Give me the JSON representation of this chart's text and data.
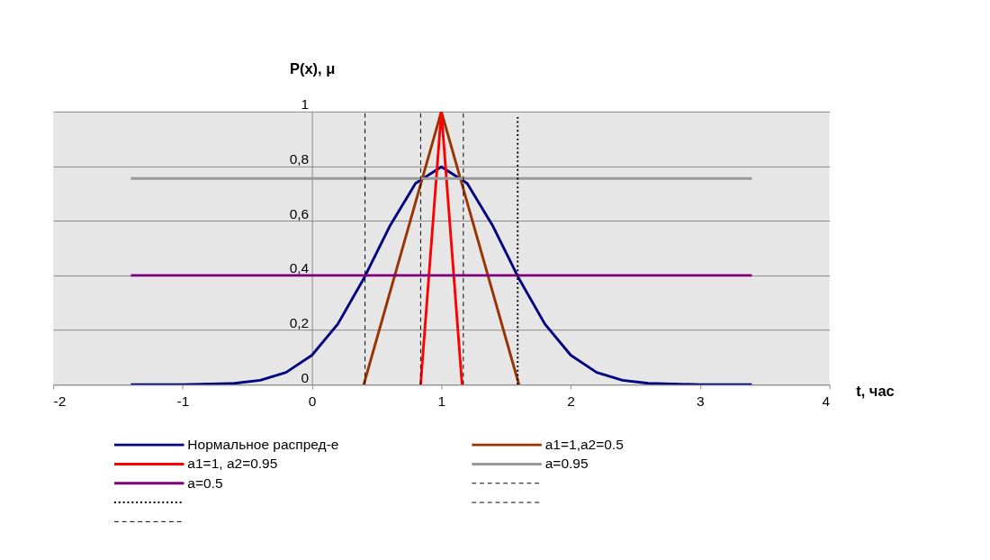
{
  "chart_data": {
    "type": "line",
    "xlabel": "t, час",
    "ylabel": "P(x), μ",
    "xlim": [
      -2,
      4
    ],
    "xticks": [
      -2,
      -1,
      0,
      1,
      2,
      3,
      4
    ],
    "ylim": [
      0,
      1
    ],
    "yticks": [
      0,
      {
        "value": 0.2,
        "label": "0,2"
      },
      {
        "value": 0.4,
        "label": "0,4"
      },
      {
        "value": 0.6,
        "label": "0,6"
      },
      {
        "value": 0.8,
        "label": "0,8"
      },
      1
    ],
    "grid": "y",
    "legend": "bottom",
    "line_style": "solid",
    "series": [
      {
        "name": "Нормальное распред-е",
        "color": "#000080",
        "x": [
          -1.4,
          -1.0,
          -0.6,
          -0.4,
          -0.2,
          0,
          0.2,
          0.4,
          0.6,
          0.8,
          1.0,
          1.2,
          1.4,
          1.6,
          1.8,
          2.0,
          2.2,
          2.4,
          2.6,
          3.0,
          3.4
        ],
        "values": [
          0,
          0,
          0.005,
          0.016,
          0.045,
          0.108,
          0.222,
          0.388,
          0.579,
          0.737,
          0.798,
          0.737,
          0.579,
          0.388,
          0.222,
          0.108,
          0.045,
          0.016,
          0.005,
          0,
          0
        ]
      },
      {
        "name": "a1=1,a2=0.5",
        "color": "#993300",
        "x": [
          0.4,
          1.0,
          1.6
        ],
        "values": [
          0,
          1,
          0
        ]
      },
      {
        "name": "a1=1, a2=0.95",
        "color": "#ff0000",
        "x": [
          0.84,
          1.0,
          1.16
        ],
        "values": [
          0,
          1,
          0
        ]
      },
      {
        "name": "a=0.95",
        "color": "#999999",
        "x": [
          -1.4,
          3.4
        ],
        "values": [
          0.755,
          0.755
        ]
      },
      {
        "name": "a=0.5",
        "color": "#800080",
        "x": [
          -1.4,
          3.4
        ],
        "values": [
          0.4,
          0.4
        ]
      },
      {
        "color": "#000000",
        "line_style": "dashed",
        "x": [
          0.41,
          0.41
        ],
        "values": [
          0,
          1
        ]
      },
      {
        "color": "#000000",
        "line_style": "dotted",
        "x": [
          1.59,
          1.59
        ],
        "values": [
          0,
          0.98
        ]
      },
      {
        "color": "#000000",
        "line_style": "dashed",
        "x": [
          0.84,
          0.84
        ],
        "values": [
          0,
          1
        ]
      },
      {
        "color": "#000000",
        "line_style": "dashed",
        "x": [
          1.17,
          1.17
        ],
        "values": [
          0,
          1
        ]
      }
    ]
  }
}
